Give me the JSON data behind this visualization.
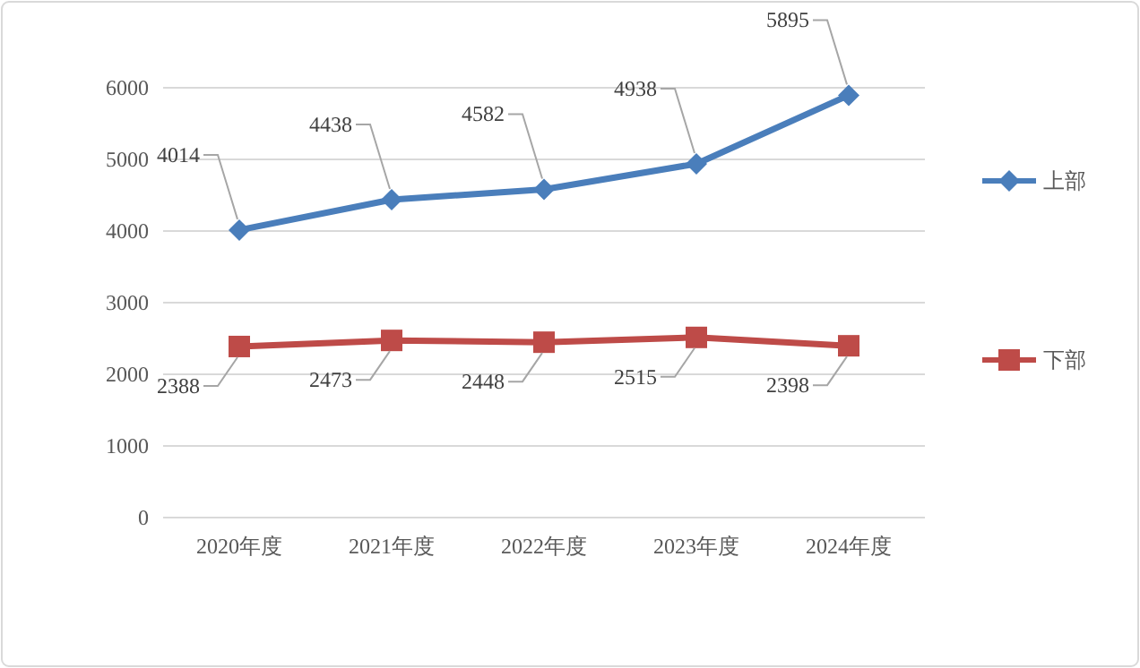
{
  "chart_data": {
    "type": "line",
    "categories": [
      "2020年度",
      "2021年度",
      "2022年度",
      "2023年度",
      "2024年度"
    ],
    "series": [
      {
        "name": "上部",
        "color": "#4a7ebb",
        "marker": "diamond",
        "values": [
          4014,
          4438,
          4582,
          4938,
          5895
        ]
      },
      {
        "name": "下部",
        "color": "#be4b48",
        "marker": "square",
        "values": [
          2388,
          2473,
          2448,
          2515,
          2398
        ]
      }
    ],
    "ylim": [
      0,
      6000
    ],
    "yticks": [
      0,
      1000,
      2000,
      3000,
      4000,
      5000,
      6000
    ],
    "grid": "y",
    "legend": "right",
    "data_labels": true,
    "line_style": "solid"
  }
}
